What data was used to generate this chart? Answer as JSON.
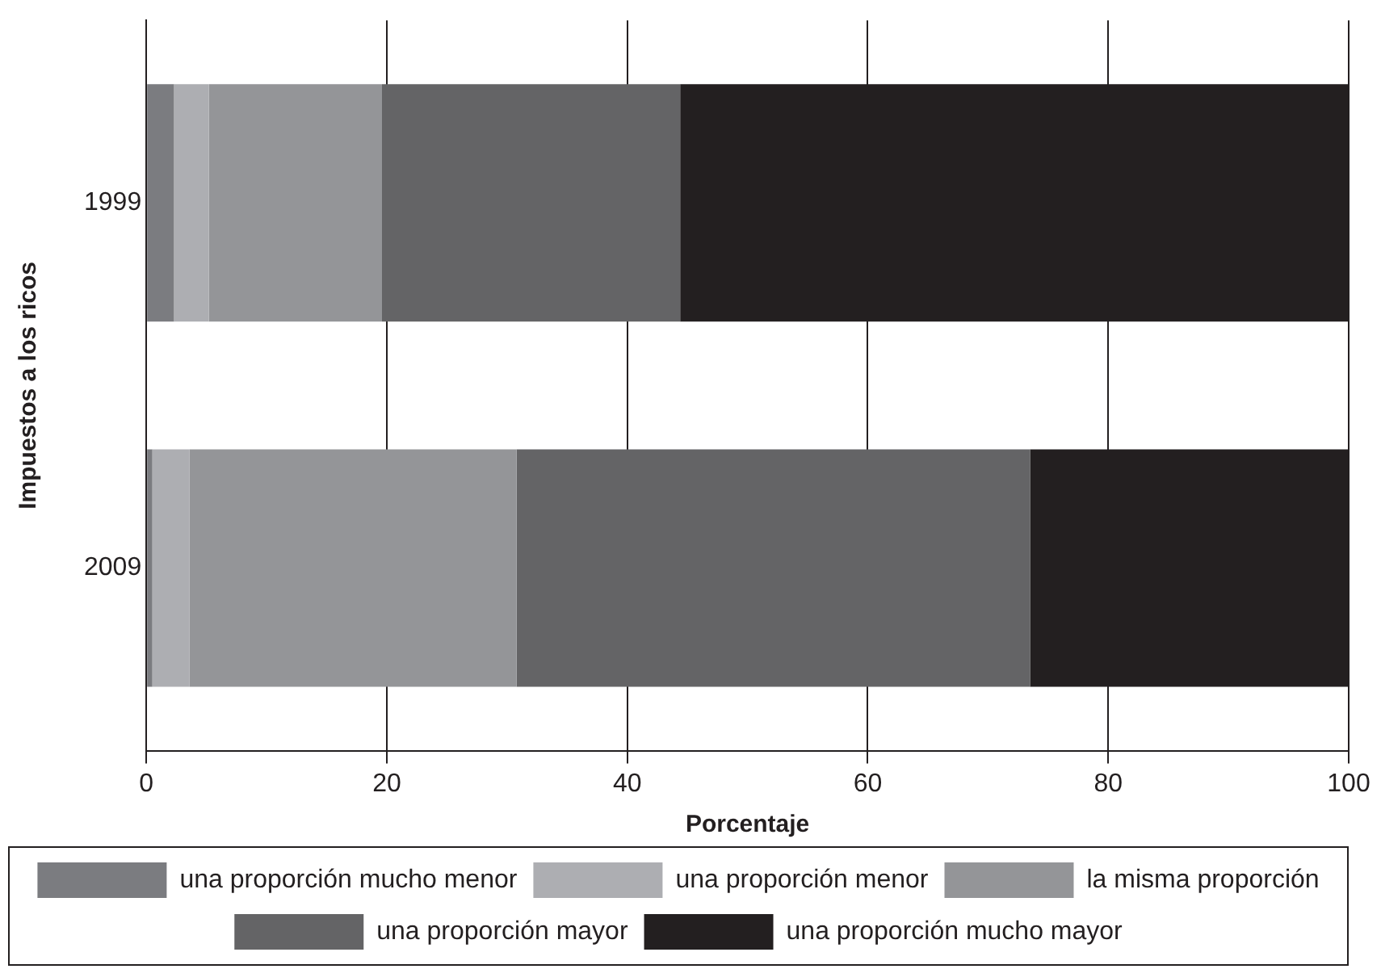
{
  "chart_data": {
    "type": "bar",
    "orientation": "horizontal",
    "stacked": true,
    "xlabel": "Porcentaje",
    "ylabel": "Impuestos a los ricos",
    "categories": [
      "1999",
      "2009"
    ],
    "series": [
      {
        "name": "una proporción mucho menor",
        "color": "#7b7c80",
        "values": [
          2.3,
          0.5
        ]
      },
      {
        "name": "una proporción menor",
        "color": "#adaeb2",
        "values": [
          2.9,
          3.1
        ]
      },
      {
        "name": "la misma proporción",
        "color": "#949598",
        "values": [
          14.4,
          27.2
        ]
      },
      {
        "name": "una proporción mayor",
        "color": "#646466",
        "values": [
          24.8,
          42.7
        ]
      },
      {
        "name": "una proporción mucho mayor",
        "color": "#231f20",
        "values": [
          55.6,
          26.5
        ]
      }
    ],
    "xlim": [
      0,
      100
    ],
    "xticks": [
      0,
      20,
      40,
      60,
      80,
      100
    ],
    "grid": "x",
    "legend": "bottom"
  }
}
